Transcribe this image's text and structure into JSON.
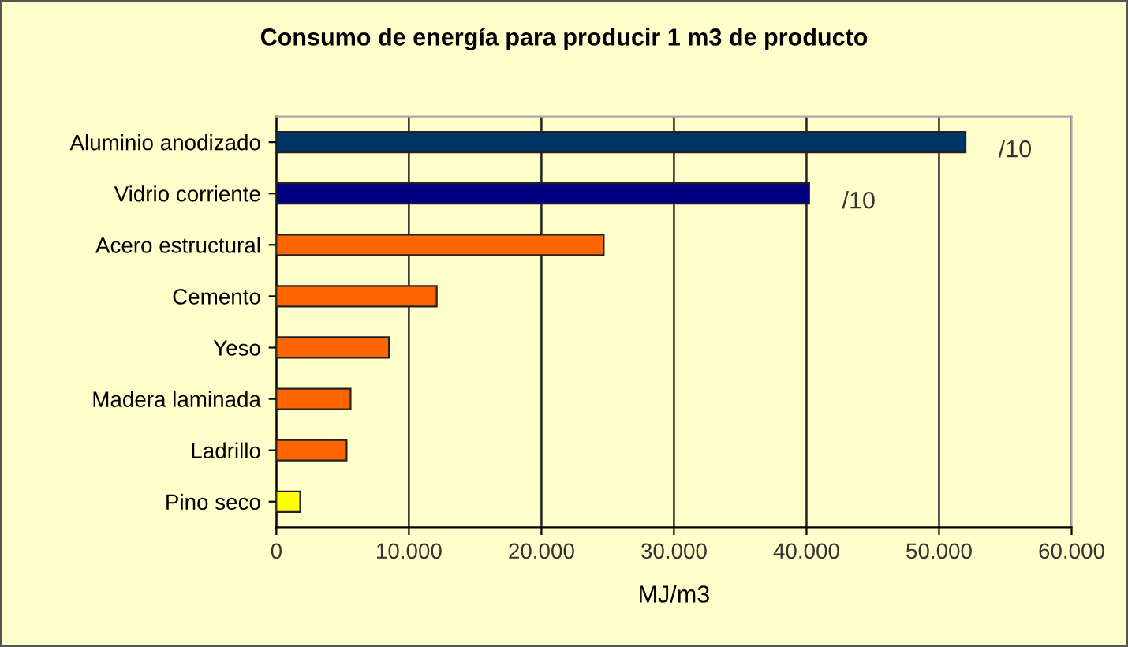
{
  "chart_data": {
    "type": "bar",
    "orientation": "horizontal",
    "title": "Consumo de energía para producir 1 m3 de producto",
    "xlabel": "MJ/m3",
    "categories": [
      "Aluminio anodizado",
      "Vidrio corriente",
      "Acero estructural",
      "Cemento",
      "Yeso",
      "Madera laminada",
      "Ladrillo",
      "Pino seco"
    ],
    "values": [
      52000,
      40200,
      24700,
      12100,
      8500,
      5600,
      5300,
      1800
    ],
    "colors": [
      "#003366",
      "#000080",
      "#ff6600",
      "#ff6600",
      "#ff6600",
      "#ff6600",
      "#ff6600",
      "#ffff00"
    ],
    "xlim": [
      0,
      60000
    ],
    "xticks": [
      0,
      {
        "value": 10000,
        "label": "10.000"
      },
      {
        "value": 20000,
        "label": "20.000"
      },
      {
        "value": 30000,
        "label": "30.000"
      },
      {
        "value": 40000,
        "label": "40.000"
      },
      {
        "value": 50000,
        "label": "50.000"
      },
      {
        "value": 60000,
        "label": "60.000"
      }
    ],
    "grid": "x",
    "legend": false,
    "annotations": [
      {
        "text": "/10",
        "x": 52000,
        "y": "Aluminio anodizado"
      },
      {
        "text": "/10",
        "x": 40200,
        "y": "Vidrio corriente"
      }
    ]
  }
}
